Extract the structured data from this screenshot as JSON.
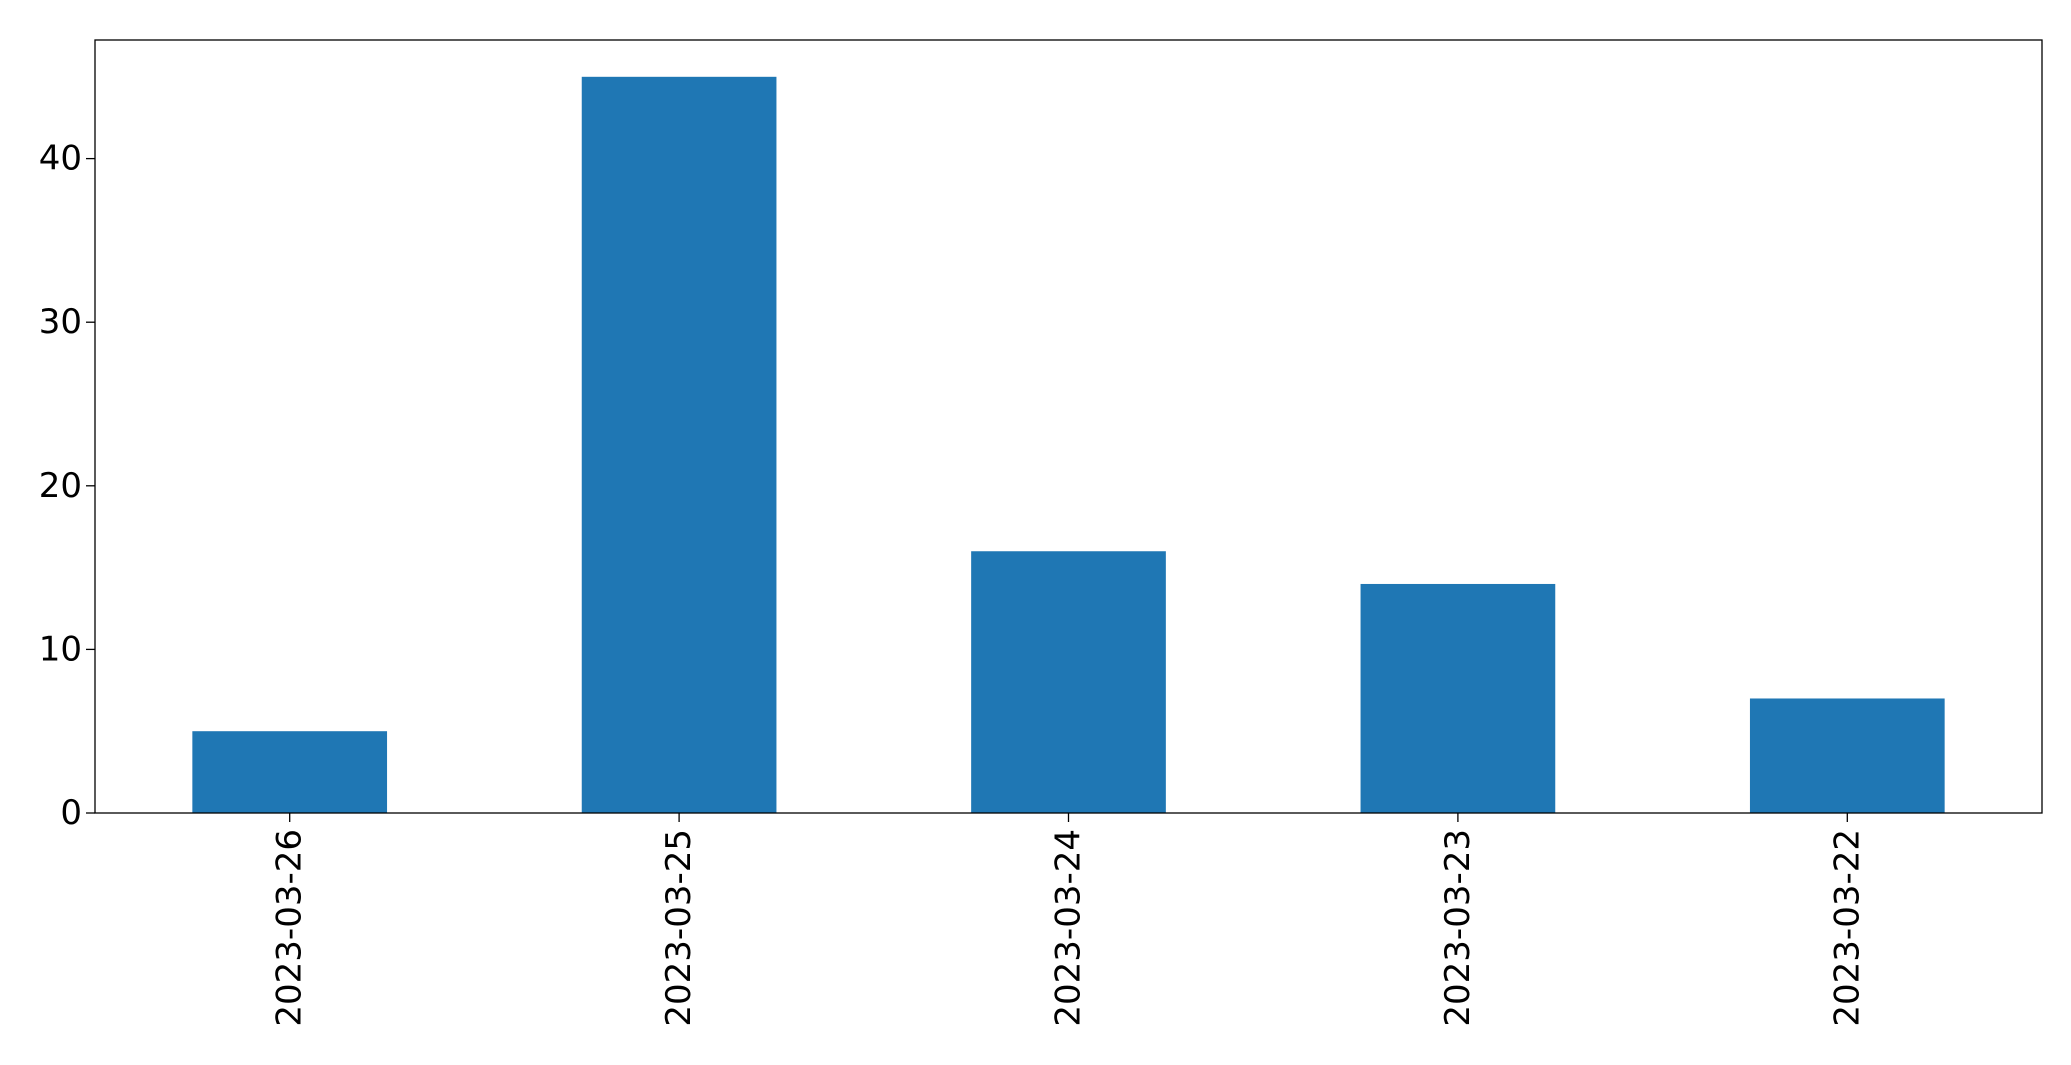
{
  "chart_data": {
    "type": "bar",
    "title": "",
    "xlabel": "",
    "ylabel": "",
    "categories": [
      "2023-03-26",
      "2023-03-25",
      "2023-03-24",
      "2023-03-23",
      "2023-03-22"
    ],
    "values": [
      5,
      45,
      16,
      14,
      7
    ],
    "ylim": [
      0,
      47.25
    ],
    "yticks": [
      0,
      10,
      20,
      30,
      40
    ],
    "bar_color": "#1f77b4",
    "grid": false,
    "legend": "none",
    "x_tick_rotation": "vertical"
  }
}
